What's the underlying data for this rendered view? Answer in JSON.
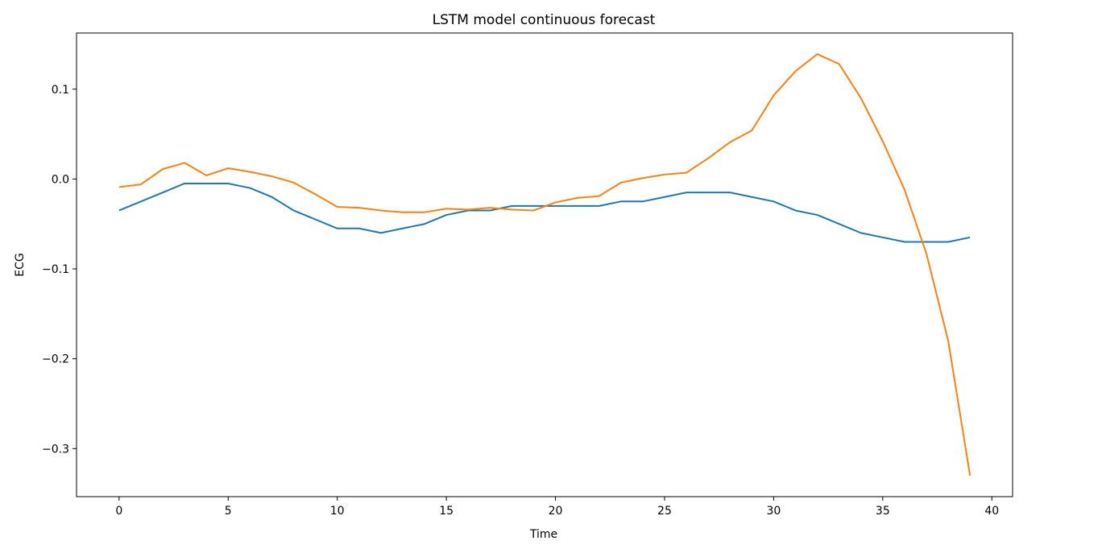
{
  "chart_data": {
    "type": "line",
    "title": "LSTM model continuous forecast",
    "xlabel": "Time",
    "ylabel": "ECG",
    "xlim": [
      -1.95,
      40.95
    ],
    "ylim": [
      -0.3535,
      0.1625
    ],
    "grid": false,
    "legend": "none",
    "x_ticks": [
      0,
      5,
      10,
      15,
      20,
      25,
      30,
      35,
      40
    ],
    "x_tick_labels": [
      "0",
      "5",
      "10",
      "15",
      "20",
      "25",
      "30",
      "35",
      "40"
    ],
    "y_ticks": [
      0.1,
      0.0,
      -0.1,
      -0.2,
      -0.3
    ],
    "y_tick_labels": [
      "0.1",
      "0.0",
      "−0.1",
      "−0.2",
      "−0.3"
    ],
    "x": [
      0,
      1,
      2,
      3,
      4,
      5,
      6,
      7,
      8,
      9,
      10,
      11,
      12,
      13,
      14,
      15,
      16,
      17,
      18,
      19,
      20,
      21,
      22,
      23,
      24,
      25,
      26,
      27,
      28,
      29,
      30,
      31,
      32,
      33,
      34,
      35,
      36,
      37,
      38,
      39
    ],
    "series": [
      {
        "color": "#1f77b4",
        "values": [
          -0.035,
          -0.025,
          -0.015,
          -0.005,
          -0.005,
          -0.005,
          -0.01,
          -0.02,
          -0.035,
          -0.045,
          -0.055,
          -0.055,
          -0.06,
          -0.055,
          -0.05,
          -0.04,
          -0.035,
          -0.035,
          -0.03,
          -0.03,
          -0.03,
          -0.03,
          -0.03,
          -0.025,
          -0.025,
          -0.02,
          -0.015,
          -0.015,
          -0.015,
          -0.02,
          -0.025,
          -0.035,
          -0.04,
          -0.05,
          -0.06,
          -0.065,
          -0.07,
          -0.07,
          -0.07,
          -0.065
        ]
      },
      {
        "color": "#ff7f0e",
        "values": [
          -0.009,
          -0.006,
          0.011,
          0.018,
          0.004,
          0.012,
          0.008,
          0.003,
          -0.004,
          -0.017,
          -0.031,
          -0.032,
          -0.035,
          -0.037,
          -0.037,
          -0.033,
          -0.034,
          -0.032,
          -0.034,
          -0.035,
          -0.026,
          -0.021,
          -0.019,
          -0.004,
          0.001,
          0.005,
          0.007,
          0.023,
          0.041,
          0.054,
          0.093,
          0.12,
          0.139,
          0.128,
          0.09,
          0.042,
          -0.012,
          -0.083,
          -0.18,
          -0.33
        ]
      }
    ]
  }
}
